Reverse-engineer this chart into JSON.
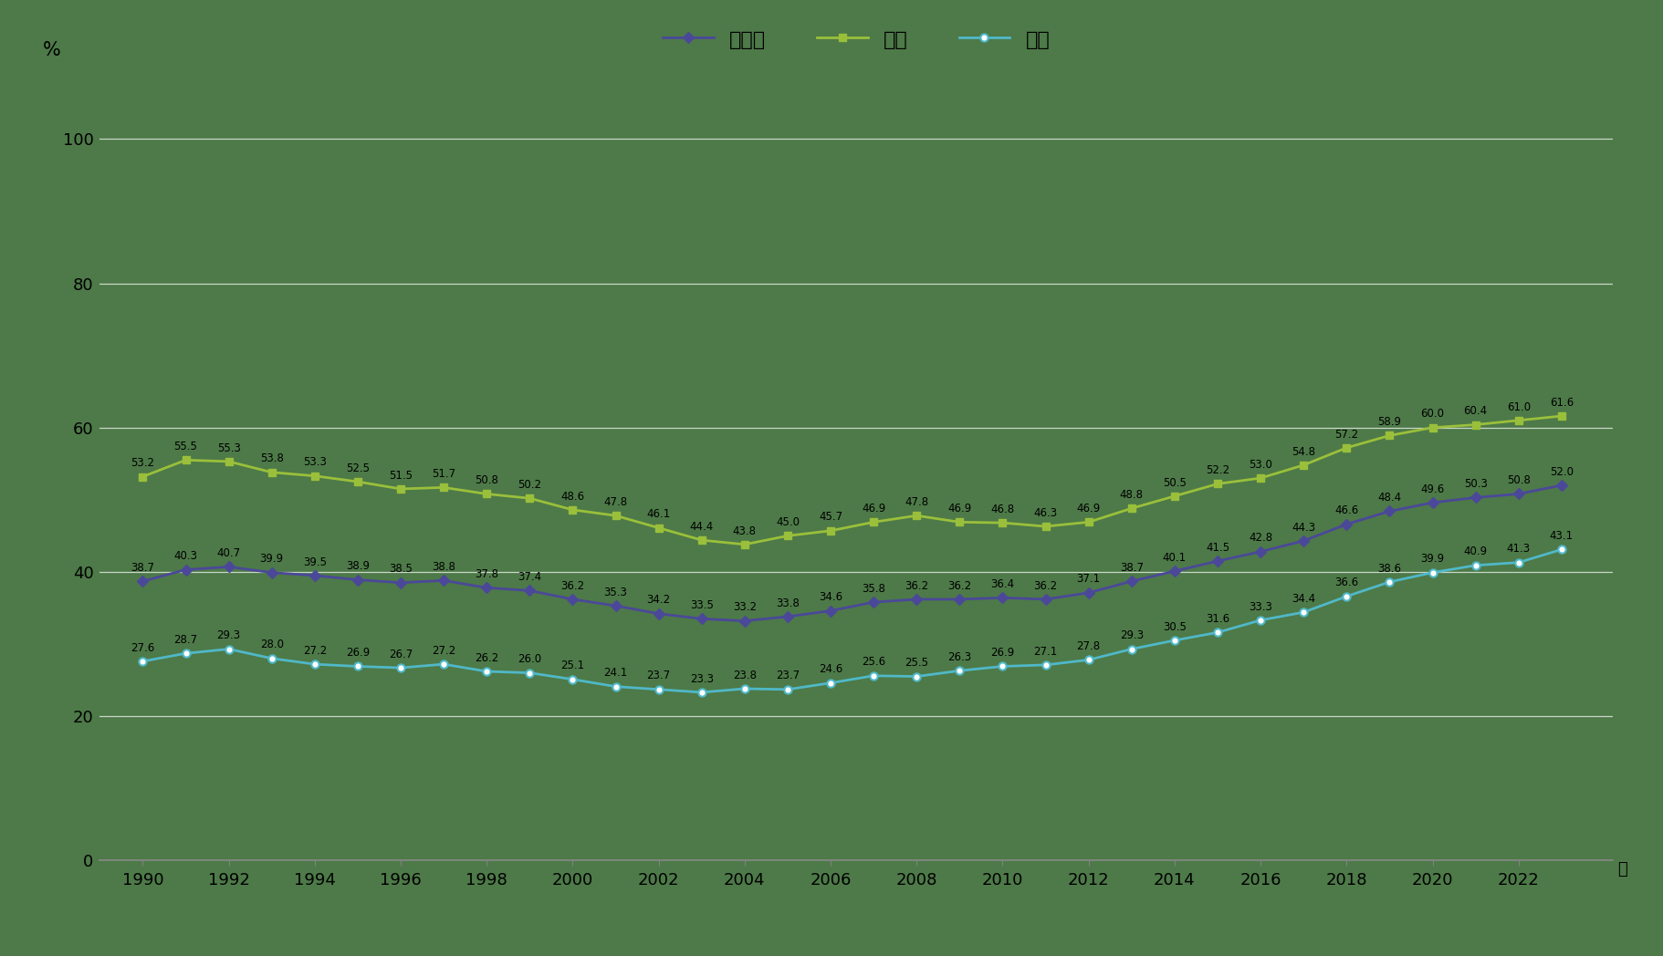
{
  "years": [
    1990,
    1991,
    1992,
    1993,
    1994,
    1995,
    1996,
    1997,
    1998,
    1999,
    2000,
    2001,
    2002,
    2003,
    2004,
    2005,
    2006,
    2007,
    2008,
    2009,
    2010,
    2011,
    2012,
    2013,
    2014,
    2015,
    2016,
    2017,
    2018,
    2019,
    2020,
    2021,
    2022,
    2023
  ],
  "danjo_kei": [
    38.7,
    40.3,
    40.7,
    39.9,
    39.5,
    38.9,
    38.5,
    38.8,
    37.8,
    37.4,
    36.2,
    35.3,
    34.2,
    33.5,
    33.2,
    33.8,
    34.6,
    35.8,
    36.2,
    36.2,
    36.4,
    36.2,
    37.1,
    38.7,
    40.1,
    41.5,
    42.8,
    44.3,
    46.6,
    48.4,
    49.6,
    50.3,
    50.8,
    52.0
  ],
  "dansei": [
    53.2,
    55.5,
    55.3,
    53.8,
    53.3,
    52.5,
    51.5,
    51.7,
    50.8,
    50.2,
    48.6,
    47.8,
    46.1,
    44.4,
    43.8,
    45.0,
    45.7,
    46.9,
    47.8,
    46.9,
    46.8,
    46.3,
    46.9,
    48.8,
    50.5,
    52.2,
    53.0,
    54.8,
    57.2,
    58.9,
    60.0,
    60.4,
    61.0,
    61.6
  ],
  "josei": [
    27.6,
    28.7,
    29.3,
    28.0,
    27.2,
    26.9,
    26.7,
    27.2,
    26.2,
    26.0,
    25.1,
    24.1,
    23.7,
    23.3,
    23.8,
    23.7,
    24.6,
    25.6,
    25.5,
    26.3,
    26.9,
    27.1,
    27.8,
    29.3,
    30.5,
    31.6,
    33.3,
    34.4,
    36.6,
    38.6,
    39.9,
    40.9,
    41.3,
    43.1
  ],
  "danjo_color": "#4b4899",
  "dansei_color": "#9abf3b",
  "josei_color": "#50b8c8",
  "bg_color": "#4d7a48",
  "grid_color": "#6a9965",
  "text_color": "#111111",
  "ylabel": "%",
  "xlabel": "年",
  "ylim": [
    0,
    110
  ],
  "yticks": [
    0,
    20,
    40,
    60,
    80,
    100
  ],
  "xticks": [
    1990,
    1992,
    1994,
    1996,
    1998,
    2000,
    2002,
    2004,
    2006,
    2008,
    2010,
    2012,
    2014,
    2016,
    2018,
    2020,
    2022
  ],
  "legend_labels": [
    "男女計",
    "男性",
    "女性"
  ],
  "marker_size": 6,
  "line_width": 2,
  "label_fontsize": 8.5,
  "tick_fontsize": 13,
  "legend_fontsize": 16
}
